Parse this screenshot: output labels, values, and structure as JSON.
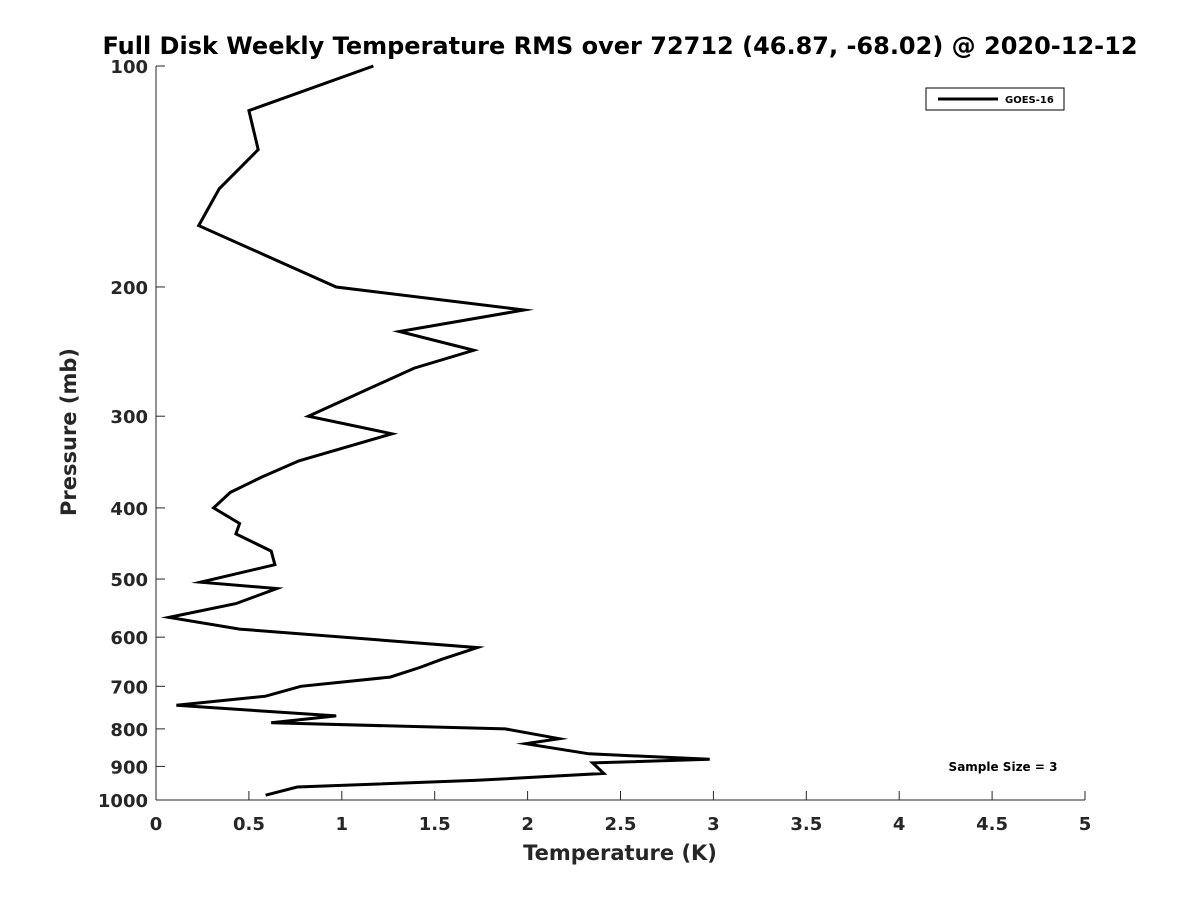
{
  "chart_data": {
    "type": "line",
    "title": "Full Disk Weekly Temperature RMS over 72712 (46.87, -68.02) @ 2020-12-12",
    "xlabel": "Temperature (K)",
    "ylabel": "Pressure (mb)",
    "xlim": [
      0,
      5
    ],
    "ylim": [
      1000,
      100
    ],
    "y_scale": "log",
    "y_reversed": true,
    "x_ticks": [
      0,
      0.5,
      1,
      1.5,
      2,
      2.5,
      3,
      3.5,
      4,
      4.5,
      5
    ],
    "x_tick_labels": [
      "0",
      "0.5",
      "1",
      "1.5",
      "2",
      "2.5",
      "3",
      "3.5",
      "4",
      "4.5",
      "5"
    ],
    "y_ticks": [
      100,
      200,
      300,
      400,
      500,
      600,
      700,
      800,
      900,
      1000
    ],
    "y_tick_labels": [
      "100",
      "200",
      "300",
      "400",
      "500",
      "600",
      "700",
      "800",
      "900",
      "1000"
    ],
    "grid": false,
    "legend_position": "top-right",
    "annotation": "Sample Size = 3",
    "series": [
      {
        "name": "GOES-16",
        "color": "#000000",
        "points": [
          [
            1.17,
            100
          ],
          [
            0.5,
            115
          ],
          [
            0.55,
            130
          ],
          [
            0.34,
            147
          ],
          [
            0.23,
            165
          ],
          [
            0.97,
            200
          ],
          [
            1.98,
            215
          ],
          [
            1.31,
            230
          ],
          [
            1.71,
            244
          ],
          [
            1.39,
            258
          ],
          [
            0.82,
            300
          ],
          [
            1.27,
            317
          ],
          [
            0.77,
            345
          ],
          [
            0.57,
            363
          ],
          [
            0.4,
            381
          ],
          [
            0.31,
            400
          ],
          [
            0.45,
            420
          ],
          [
            0.43,
            434
          ],
          [
            0.62,
            458
          ],
          [
            0.64,
            478
          ],
          [
            0.24,
            505
          ],
          [
            0.65,
            515
          ],
          [
            0.43,
            540
          ],
          [
            0.07,
            564
          ],
          [
            0.45,
            585
          ],
          [
            1.73,
            620
          ],
          [
            1.54,
            643
          ],
          [
            1.42,
            660
          ],
          [
            1.26,
            680
          ],
          [
            0.78,
            700
          ],
          [
            0.59,
            722
          ],
          [
            0.11,
            743
          ],
          [
            0.97,
            768
          ],
          [
            0.62,
            785
          ],
          [
            1.88,
            800
          ],
          [
            2.17,
            825
          ],
          [
            1.99,
            838
          ],
          [
            2.33,
            865
          ],
          [
            2.98,
            880
          ],
          [
            2.35,
            890
          ],
          [
            2.41,
            920
          ],
          [
            1.73,
            940
          ],
          [
            0.76,
            960
          ],
          [
            0.59,
            985
          ]
        ]
      }
    ]
  }
}
